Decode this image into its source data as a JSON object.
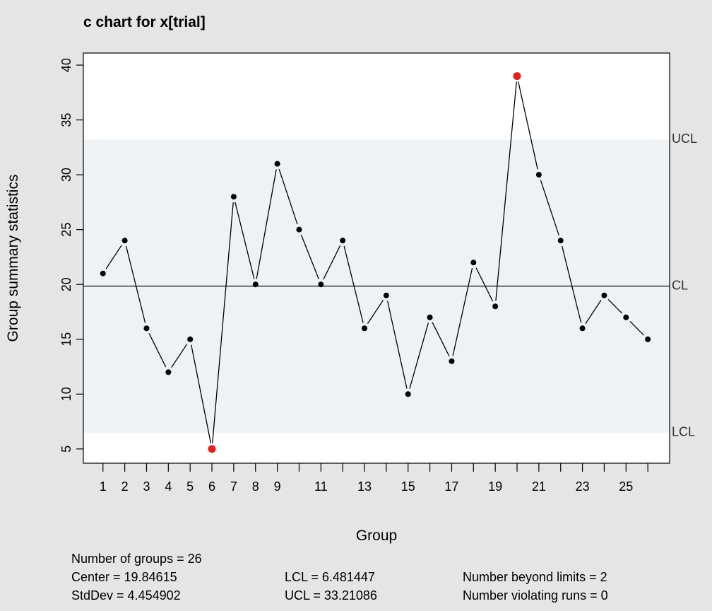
{
  "chart_data": {
    "type": "line",
    "title": "c chart for x[trial]",
    "xlabel": "Group",
    "ylabel": "Group summary statistics",
    "x": [
      1,
      2,
      3,
      4,
      5,
      6,
      7,
      8,
      9,
      10,
      11,
      12,
      13,
      14,
      15,
      16,
      17,
      18,
      19,
      20,
      21,
      22,
      23,
      24,
      25,
      26
    ],
    "values": [
      21,
      24,
      16,
      12,
      15,
      5,
      28,
      20,
      31,
      25,
      20,
      24,
      16,
      19,
      10,
      17,
      13,
      22,
      18,
      39,
      30,
      24,
      16,
      19,
      17,
      15
    ],
    "x_tick_labels": [
      "1",
      "2",
      "3",
      "4",
      "5",
      "6",
      "7",
      "8",
      "9",
      "11",
      "13",
      "15",
      "17",
      "19",
      "21",
      "23",
      "25"
    ],
    "y_ticks": [
      5,
      10,
      15,
      20,
      25,
      30,
      35,
      40
    ],
    "ylim": [
      3.7,
      41.1
    ],
    "xlim": [
      0.1,
      27.0
    ],
    "center": 19.84615,
    "lcl": 6.481447,
    "ucl": 33.21086,
    "limit_labels": {
      "ucl": "UCL",
      "cl": "CL",
      "lcl": "LCL"
    },
    "beyond_limits_indices": [
      6,
      20
    ],
    "colors": {
      "point": "#000000",
      "beyond_limits": "#e2211c",
      "control_band": "#eff2f5",
      "plot_background": "#ffffff",
      "page_background": "#e5e5e5",
      "limit_label": "#333333"
    },
    "grid": false
  },
  "stats": {
    "groups": "Number of groups = 26",
    "center": "Center = 19.84615",
    "stddev": "StdDev = 4.454902",
    "lcl": "LCL = 6.481447",
    "ucl": "UCL = 33.21086",
    "beyond": "Number beyond limits = 2",
    "runs": "Number violating runs = 0"
  }
}
